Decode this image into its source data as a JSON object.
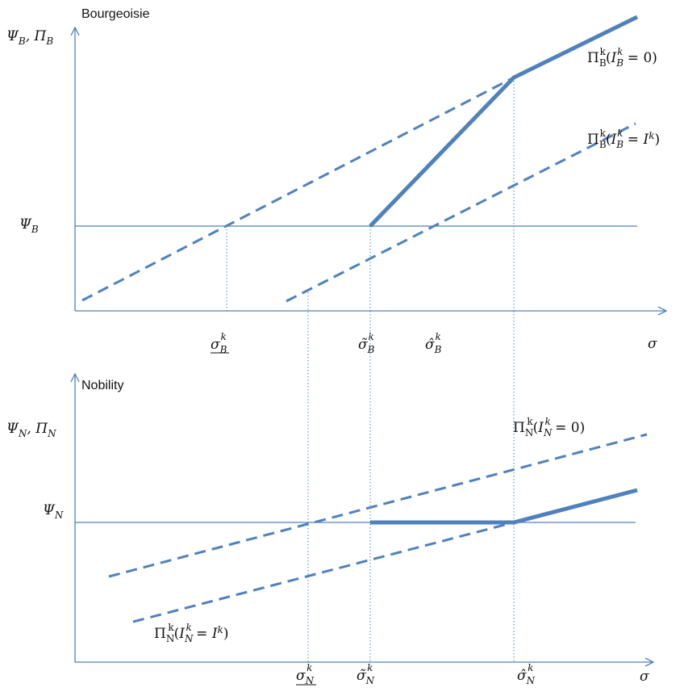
{
  "diagram": {
    "accent_color": "#4f81bd",
    "top_panel": {
      "title": "Bourgeoisie",
      "y_axis_label": "Ψ_B, Π_B",
      "level_label": "Ψ_B",
      "x_axis_label": "σ",
      "ticks": [
        "σ̲_B^k",
        "σ̃_B^k",
        "σ̂_B^k"
      ],
      "curve_labels": [
        "Π_B^k(I_B^k = 0)",
        "Π_B^k(I_B^k = I^k)"
      ]
    },
    "bottom_panel": {
      "title": "Nobility",
      "y_axis_label": "Ψ_N, Π_N",
      "level_label": "Ψ_N",
      "x_axis_label": "σ",
      "ticks": [
        "σ̲_N^k",
        "σ̃_N^k",
        "σ̂_N^k"
      ],
      "curve_labels": [
        "Π_N^k(I_N^k = 0)",
        "Π_N^k(I_N^k = I^k)"
      ]
    }
  }
}
